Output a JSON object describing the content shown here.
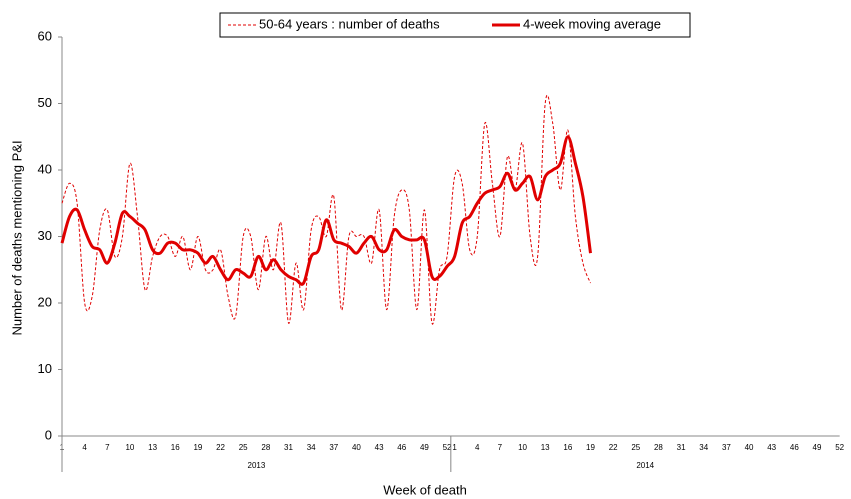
{
  "chart_data": {
    "type": "line",
    "xlabel": "Week of death",
    "ylabel": "Number of deaths mentioning P&I",
    "groups": [
      "2013",
      "2014"
    ],
    "categories": [
      "1",
      null,
      null,
      "4",
      null,
      null,
      "7",
      null,
      null,
      "10",
      null,
      null,
      "13",
      null,
      null,
      "16",
      null,
      null,
      "19",
      null,
      null,
      "22",
      null,
      null,
      "25",
      null,
      null,
      "28",
      null,
      null,
      "31",
      null,
      null,
      "34",
      null,
      null,
      "37",
      null,
      null,
      "40",
      null,
      null,
      "43",
      null,
      null,
      "46",
      null,
      null,
      "49",
      null,
      null,
      "52",
      "1",
      null,
      null,
      "4",
      null,
      null,
      "7",
      null,
      null,
      "10",
      null,
      null,
      "13",
      null,
      null,
      "16",
      null,
      null,
      "19",
      null,
      null,
      "22",
      null,
      null,
      "25",
      null,
      null,
      "28",
      null,
      null,
      "31",
      null,
      null,
      "34",
      null,
      null,
      "37",
      null,
      null,
      "40",
      null,
      null,
      "43",
      null,
      null,
      "46",
      null,
      null,
      "49",
      null,
      null,
      "52"
    ],
    "series": [
      {
        "name": "50-64 years : number of deaths",
        "color": "#e00000",
        "dashed": true,
        "values": [
          35,
          38,
          35,
          20,
          21,
          31,
          34,
          27,
          30,
          41,
          33,
          22,
          27,
          30,
          30,
          27,
          30,
          25,
          30,
          25,
          25,
          28,
          21,
          18,
          30,
          30,
          22,
          30,
          25,
          32,
          17,
          26,
          19,
          31,
          33,
          30,
          36,
          19,
          30,
          30,
          30,
          26,
          34,
          19,
          33,
          37,
          34,
          19,
          34,
          17,
          25,
          27,
          39,
          38,
          28,
          30,
          47,
          38,
          30,
          42,
          37,
          44,
          30,
          27,
          50,
          47,
          37,
          46,
          33,
          26,
          23,
          null,
          null,
          null,
          null,
          null,
          null,
          null,
          null,
          null,
          null,
          null,
          null,
          null,
          null,
          null,
          null,
          null,
          null,
          null,
          null,
          null,
          null,
          null,
          null,
          null,
          null,
          null,
          null,
          null,
          null,
          null,
          null,
          null
        ]
      },
      {
        "name": "4-week moving average",
        "color": "#e00000",
        "dashed": false,
        "values": [
          29,
          33,
          34,
          31,
          28.5,
          28,
          26,
          29,
          33.5,
          33,
          32,
          31,
          28,
          27.5,
          29,
          29,
          28,
          28,
          27.5,
          26,
          27,
          25,
          23.5,
          25,
          24.5,
          24,
          27,
          25,
          26.5,
          25,
          24,
          23.5,
          23,
          27,
          28,
          32.5,
          29.5,
          29,
          28.5,
          27.5,
          29,
          30,
          28,
          28,
          31,
          30,
          29.5,
          29.5,
          29.5,
          24,
          24,
          25.5,
          27,
          32,
          33,
          35,
          36.5,
          37,
          37.5,
          39.5,
          37,
          38,
          39,
          35.5,
          39,
          40,
          41,
          45,
          41,
          36,
          27.5,
          null,
          null,
          null,
          null,
          null,
          null,
          null,
          null,
          null,
          null,
          null,
          null,
          null,
          null,
          null,
          null,
          null,
          null,
          null,
          null,
          null,
          null,
          null,
          null,
          null,
          null,
          null,
          null,
          null,
          null,
          null,
          null,
          null
        ]
      }
    ],
    "ylim": [
      0,
      60
    ],
    "yticks": [
      0,
      10,
      20,
      30,
      40,
      50,
      60
    ]
  }
}
